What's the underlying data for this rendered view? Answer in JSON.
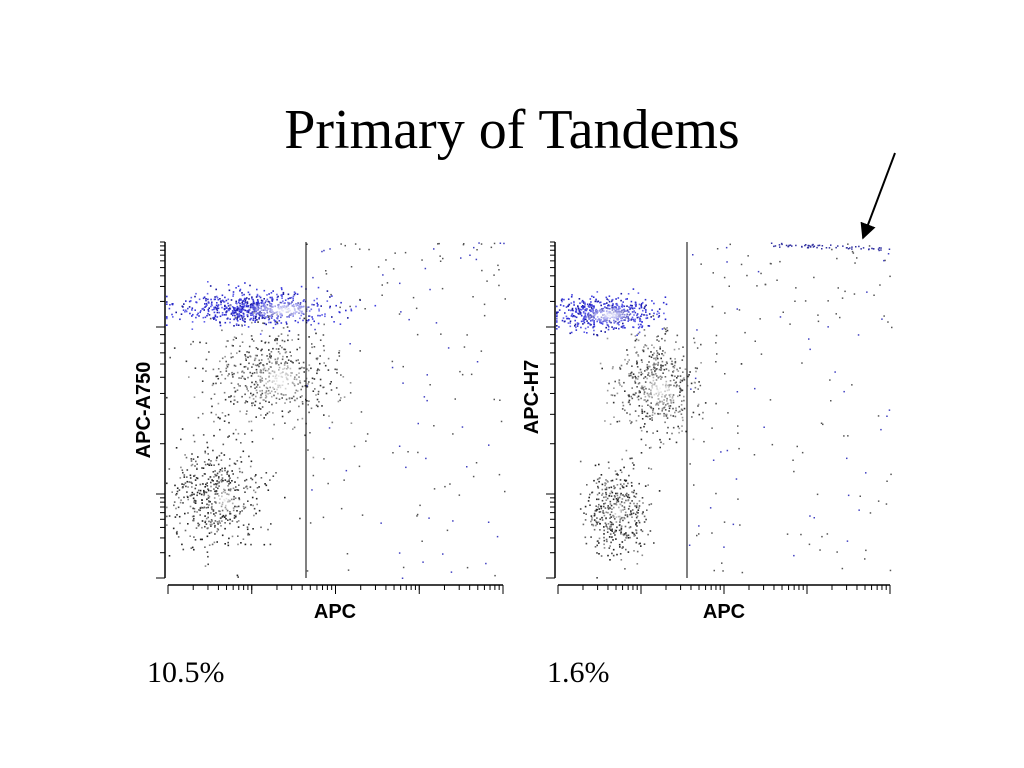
{
  "title": "Primary of Tandems",
  "panels": [
    {
      "y_label": "APC-A750",
      "x_label": "APC",
      "percent": "10.5%"
    },
    {
      "y_label": "APC-H7",
      "x_label": "APC",
      "percent": "1.6%"
    }
  ]
}
